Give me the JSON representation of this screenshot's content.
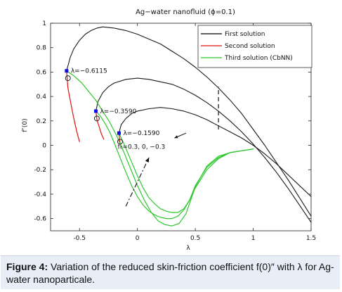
{
  "caption": {
    "label": "Figure 4:",
    "text": "Variation of the reduced skin-friction coefficient f(0)″ with λ for Ag-water nanoparticale."
  },
  "chart_data": {
    "type": "line",
    "title": "Ag−water nanofluid  (ϕ=0.1)",
    "xlabel": "λ",
    "ylabel": "f″(0)",
    "xlim": [
      -0.75,
      1.5
    ],
    "ylim": [
      -0.7,
      1.0
    ],
    "xticks": [
      "-0.5",
      "0",
      "0.5",
      "1",
      "1.5"
    ],
    "yticks": [
      "-0.6",
      "-0.4",
      "-0.2",
      "0",
      "0.2",
      "0.4",
      "0.6",
      "0.8",
      "1"
    ],
    "grid": false,
    "legend": {
      "placement": "top-right",
      "entries": [
        {
          "label": "First solution",
          "color": "#000000"
        },
        {
          "label": "Second solution",
          "color": "#e01010"
        },
        {
          "label": "Third solution (CbNN)",
          "color": "#2ec82e"
        }
      ]
    },
    "colors": {
      "first": "#1a1a1a",
      "second": "#e01010",
      "third": "#2ec82e",
      "critical": "#1010e0"
    },
    "series": [
      {
        "kind": "first",
        "x": [
          -0.6115,
          -0.58,
          -0.55,
          -0.5,
          -0.45,
          -0.4,
          -0.35,
          -0.3,
          -0.2,
          -0.1,
          0.0,
          0.1,
          0.2,
          0.3,
          0.4,
          0.5,
          0.6,
          0.7,
          0.8,
          0.9,
          1.0,
          1.1,
          1.2,
          1.3,
          1.4,
          1.5
        ],
        "y": [
          0.61,
          0.72,
          0.79,
          0.86,
          0.91,
          0.94,
          0.96,
          0.97,
          0.96,
          0.94,
          0.91,
          0.87,
          0.83,
          0.77,
          0.71,
          0.64,
          0.56,
          0.47,
          0.37,
          0.26,
          0.13,
          0.0,
          -0.14,
          -0.28,
          -0.43,
          -0.58
        ]
      },
      {
        "kind": "first",
        "x": [
          -0.359,
          -0.34,
          -0.3,
          -0.25,
          -0.2,
          -0.1,
          0.0,
          0.1,
          0.2,
          0.3,
          0.4,
          0.5,
          0.6,
          0.7,
          0.8,
          0.9,
          1.0,
          1.1,
          1.2,
          1.3,
          1.4,
          1.5
        ],
        "y": [
          0.28,
          0.36,
          0.43,
          0.48,
          0.51,
          0.54,
          0.55,
          0.54,
          0.52,
          0.5,
          0.46,
          0.41,
          0.35,
          0.28,
          0.2,
          0.11,
          0.01,
          -0.1,
          -0.22,
          -0.35,
          -0.49,
          -0.63
        ]
      },
      {
        "kind": "first",
        "x": [
          -0.159,
          -0.14,
          -0.1,
          -0.05,
          0.0,
          0.1,
          0.2,
          0.3,
          0.4,
          0.5,
          0.6,
          0.7,
          0.8,
          0.9,
          1.0,
          1.1,
          1.2,
          1.3,
          1.4,
          1.5
        ],
        "y": [
          0.1,
          0.17,
          0.22,
          0.26,
          0.28,
          0.3,
          0.31,
          0.3,
          0.28,
          0.25,
          0.21,
          0.16,
          0.11,
          0.06,
          0.0,
          -0.07,
          -0.15,
          -0.24,
          -0.33,
          -0.42
        ]
      },
      {
        "kind": "second",
        "x": [
          -0.6115,
          -0.6,
          -0.58,
          -0.56,
          -0.54,
          -0.52,
          -0.5
        ],
        "y": [
          0.61,
          0.47,
          0.37,
          0.27,
          0.18,
          0.1,
          0.03
        ]
      },
      {
        "kind": "second",
        "x": [
          -0.359,
          -0.35,
          -0.33,
          -0.31,
          -0.29
        ],
        "y": [
          0.28,
          0.21,
          0.15,
          0.09,
          0.05
        ]
      },
      {
        "kind": "second",
        "x": [
          -0.159,
          -0.155,
          -0.15,
          -0.14
        ],
        "y": [
          0.1,
          0.06,
          0.02,
          -0.01
        ]
      },
      {
        "kind": "third",
        "x": [
          -0.6115,
          -0.55,
          -0.48,
          -0.42,
          -0.36,
          -0.3,
          -0.24,
          -0.18,
          -0.12,
          -0.06,
          0.0,
          0.06,
          0.12,
          0.18,
          0.24,
          0.3,
          0.36,
          0.42,
          0.5,
          0.6,
          0.7,
          0.8,
          0.9,
          1.0
        ],
        "y": [
          0.61,
          0.57,
          0.51,
          0.44,
          0.37,
          0.28,
          0.19,
          0.08,
          -0.05,
          -0.19,
          -0.33,
          -0.45,
          -0.55,
          -0.62,
          -0.65,
          -0.66,
          -0.64,
          -0.56,
          -0.34,
          -0.17,
          -0.09,
          -0.06,
          -0.045,
          -0.03
        ]
      },
      {
        "kind": "third",
        "x": [
          -0.359,
          -0.32,
          -0.28,
          -0.24,
          -0.2,
          -0.15,
          -0.1,
          -0.05,
          0.0,
          0.05,
          0.1,
          0.15,
          0.2,
          0.25,
          0.3,
          0.35,
          0.4,
          0.45,
          0.5,
          0.6,
          0.7,
          0.8,
          0.9,
          1.0
        ],
        "y": [
          0.28,
          0.24,
          0.18,
          0.11,
          0.02,
          -0.1,
          -0.22,
          -0.33,
          -0.42,
          -0.49,
          -0.54,
          -0.57,
          -0.59,
          -0.6,
          -0.6,
          -0.58,
          -0.53,
          -0.45,
          -0.33,
          -0.18,
          -0.1,
          -0.06,
          -0.045,
          -0.03
        ]
      },
      {
        "kind": "third",
        "x": [
          -0.159,
          -0.12,
          -0.08,
          -0.04,
          0.0,
          0.05,
          0.1,
          0.15,
          0.2,
          0.25,
          0.3,
          0.35,
          0.4,
          0.45,
          0.5,
          0.6,
          0.7,
          0.8,
          0.9,
          1.0
        ],
        "y": [
          0.1,
          0.02,
          -0.07,
          -0.16,
          -0.25,
          -0.35,
          -0.43,
          -0.48,
          -0.52,
          -0.54,
          -0.55,
          -0.55,
          -0.52,
          -0.45,
          -0.35,
          -0.2,
          -0.11,
          -0.06,
          -0.045,
          -0.03
        ]
      }
    ],
    "critical_points": [
      {
        "x": -0.6115,
        "y": 0.61,
        "label": "λ=−0.6115"
      },
      {
        "x": -0.359,
        "y": 0.28,
        "label": "λ=−0.3590"
      },
      {
        "x": -0.159,
        "y": 0.1,
        "label": "λ=−0.1590"
      }
    ],
    "circle_markers": [
      {
        "x": -0.6,
        "y": 0.55
      },
      {
        "x": -0.35,
        "y": 0.22
      },
      {
        "x": -0.15,
        "y": 0.03
      }
    ],
    "annotations": {
      "dashed_line": {
        "x": [
          0.7,
          0.7
        ],
        "y": [
          0.13,
          0.48
        ]
      },
      "dashdot_arrow": {
        "x": [
          -0.1,
          0.1
        ],
        "y": [
          -0.5,
          -0.1
        ]
      },
      "suction_text": "f₀=0.3,  0, −0.3",
      "suction_text_at": {
        "x": -0.17,
        "y": -0.01
      },
      "small_arrow": {
        "x": [
          0.42,
          0.32
        ],
        "y": [
          0.1,
          0.06
        ]
      }
    }
  }
}
